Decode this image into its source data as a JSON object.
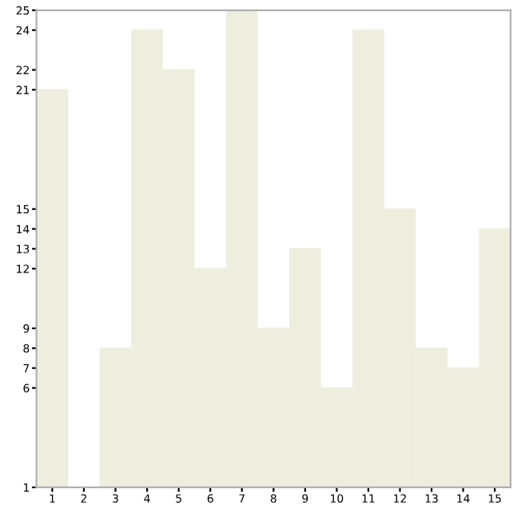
{
  "chart_data": {
    "type": "bar",
    "categories": [
      "1",
      "2",
      "3",
      "4",
      "5",
      "6",
      "7",
      "8",
      "9",
      "10",
      "11",
      "12",
      "13",
      "14",
      "15"
    ],
    "values": [
      21,
      1,
      8,
      24,
      22,
      12,
      25,
      9,
      13,
      6,
      24,
      15,
      8,
      7,
      14
    ],
    "color": "#eeeedf",
    "ylim": [
      1,
      25
    ],
    "yticks": [
      1,
      6,
      7,
      8,
      9,
      12,
      13,
      14,
      15,
      21,
      22,
      24,
      25
    ],
    "grid": false
  }
}
